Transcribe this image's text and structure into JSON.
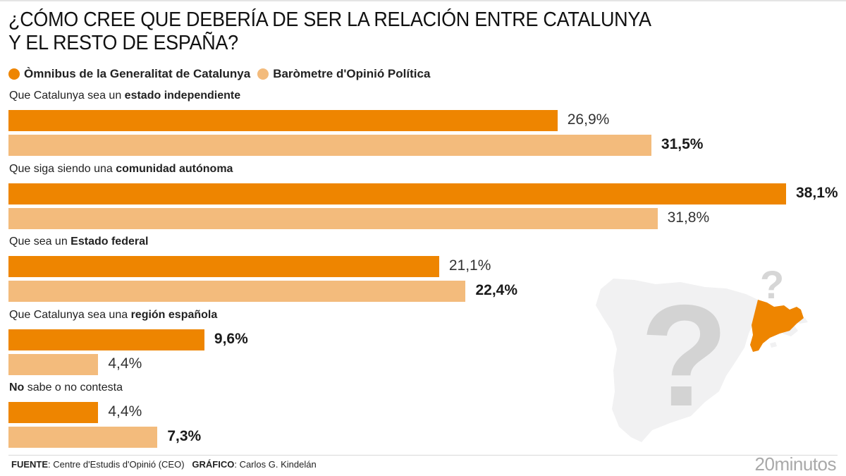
{
  "header": {
    "title_line1": "¿CÓMO CREE QUE DEBERÍA DE SER LA RELACIÓN ENTRE CATALUNYA",
    "title_line2": "Y EL RESTO DE ESPAÑA?"
  },
  "colors": {
    "omnibus": "#EE8500",
    "barometre": "#F3BB7C",
    "map_base": "#F1F1F2",
    "question_mark": "#D3D3D3"
  },
  "chart_data": {
    "type": "bar",
    "orientation": "horizontal",
    "title": "¿CÓMO CREE QUE DEBERÍA DE SER LA RELACIÓN ENTRE CATALUNYA Y EL RESTO DE ESPAÑA?",
    "legend_position": "top-left",
    "categories": [
      {
        "pre": "Que Catalunya sea un ",
        "bold": "estado independiente",
        "post": ""
      },
      {
        "pre": "Que siga siendo una ",
        "bold": "comunidad autónoma",
        "post": ""
      },
      {
        "pre": "Que sea un ",
        "bold": "Estado federal",
        "post": ""
      },
      {
        "pre": "Que Catalunya sea una ",
        "bold": "región española",
        "post": ""
      },
      {
        "pre": "",
        "bold": "No",
        "post": " sabe o no contesta"
      }
    ],
    "series": [
      {
        "name": "Òmnibus de la Generalitat de Catalunya",
        "values": [
          26.9,
          38.1,
          21.1,
          9.6,
          4.4
        ],
        "labels": [
          "26,9%",
          "38,1%",
          "21,1%",
          "9,6%",
          "4,4%"
        ],
        "bold": [
          false,
          true,
          false,
          true,
          false
        ]
      },
      {
        "name": "Baròmetre d'Opinió Política",
        "values": [
          31.5,
          31.8,
          22.4,
          4.4,
          7.3
        ],
        "labels": [
          "31,5%",
          "31,8%",
          "22,4%",
          "4,4%",
          "7,3%"
        ],
        "bold": [
          true,
          false,
          true,
          false,
          true
        ]
      }
    ],
    "xlim": [
      0,
      38.1
    ],
    "grid": false
  },
  "footer": {
    "source_label": "FUENTE",
    "source_text": ": Centre d'Estudis d'Opinió (CEO)",
    "graphic_label": "GRÁFICO",
    "graphic_text": ": Carlos G. Kindelán",
    "brand": "20minutos"
  }
}
